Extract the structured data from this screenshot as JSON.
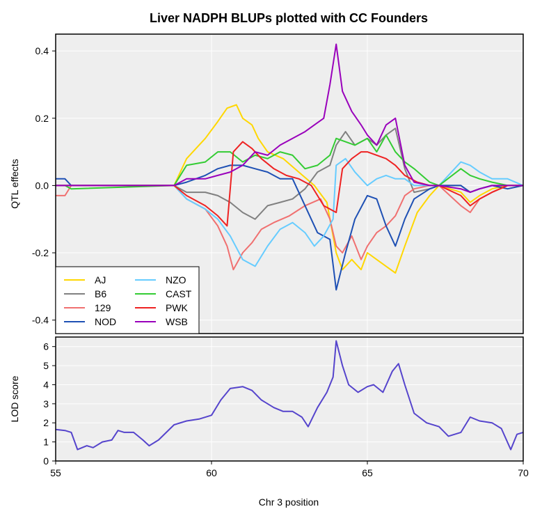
{
  "chart_data": {
    "type": "line",
    "title": "Liver NADPH BLUPs plotted with CC Founders",
    "xlabel": "Chr 3 position",
    "xlim": [
      55,
      70
    ],
    "xticks": [
      55,
      60,
      65,
      70
    ],
    "grid": true,
    "panels": [
      {
        "id": "qtl",
        "ylabel": "QTL effects",
        "ylim": [
          -0.44,
          0.45
        ],
        "yticks": [
          -0.4,
          -0.2,
          0.0,
          0.2,
          0.4
        ],
        "ytick_labels": [
          "-0.4",
          "-0.2",
          "0.0",
          "0.2",
          "0.4"
        ],
        "legend_position": "bottom-left",
        "series": [
          {
            "name": "AJ",
            "color": "#FFD700",
            "x": [
              55,
              55.3,
              55.5,
              58.8,
              59.2,
              59.8,
              60.2,
              60.5,
              60.8,
              61.0,
              61.3,
              61.5,
              61.8,
              62.3,
              62.8,
              63.3,
              63.7,
              64.0,
              64.2,
              64.5,
              64.8,
              65.0,
              65.3,
              65.6,
              65.9,
              66.2,
              66.6,
              67.0,
              67.3,
              68.0,
              68.3,
              68.6,
              69.0,
              69.5,
              70
            ],
            "y": [
              0.0,
              0.0,
              0.0,
              0.0,
              0.08,
              0.14,
              0.19,
              0.23,
              0.24,
              0.2,
              0.18,
              0.14,
              0.1,
              0.08,
              0.04,
              0.0,
              -0.05,
              -0.2,
              -0.25,
              -0.22,
              -0.25,
              -0.2,
              -0.22,
              -0.24,
              -0.26,
              -0.18,
              -0.08,
              -0.03,
              0.0,
              -0.02,
              -0.05,
              -0.03,
              -0.01,
              0.0,
              0.0
            ]
          },
          {
            "name": "B6",
            "color": "#808080",
            "x": [
              55,
              55.3,
              55.5,
              58.8,
              59.2,
              59.8,
              60.2,
              60.6,
              61.0,
              61.4,
              61.8,
              62.2,
              62.6,
              63.0,
              63.4,
              63.8,
              64.0,
              64.3,
              64.6,
              65.0,
              65.3,
              65.6,
              65.9,
              66.2,
              66.5,
              67.0,
              67.3,
              68.0,
              68.3,
              68.6,
              69.0,
              69.5,
              70
            ],
            "y": [
              0.0,
              0.0,
              0.0,
              0.0,
              -0.02,
              -0.02,
              -0.03,
              -0.05,
              -0.08,
              -0.1,
              -0.06,
              -0.05,
              -0.04,
              -0.01,
              0.04,
              0.06,
              0.12,
              0.16,
              0.12,
              0.14,
              0.12,
              0.15,
              0.17,
              0.05,
              -0.02,
              -0.01,
              0.0,
              0.0,
              -0.02,
              -0.01,
              0.0,
              0.0,
              0.0
            ]
          },
          {
            "name": "129",
            "color": "#F07070",
            "x": [
              55,
              55.3,
              55.5,
              58.8,
              59.2,
              59.8,
              60.2,
              60.5,
              60.7,
              61.0,
              61.3,
              61.6,
              62.0,
              62.5,
              63.0,
              63.5,
              63.8,
              64.0,
              64.2,
              64.5,
              64.8,
              65.0,
              65.3,
              65.6,
              65.9,
              66.2,
              66.5,
              67.0,
              67.3,
              68.0,
              68.3,
              68.6,
              69.0,
              69.5,
              70
            ],
            "y": [
              -0.03,
              -0.03,
              0.0,
              0.0,
              -0.04,
              -0.07,
              -0.12,
              -0.18,
              -0.25,
              -0.2,
              -0.17,
              -0.13,
              -0.11,
              -0.09,
              -0.06,
              -0.04,
              -0.1,
              -0.18,
              -0.2,
              -0.15,
              -0.22,
              -0.18,
              -0.14,
              -0.12,
              -0.09,
              -0.03,
              -0.01,
              0.0,
              0.0,
              -0.06,
              -0.08,
              -0.04,
              -0.02,
              0.0,
              0.0
            ]
          },
          {
            "name": "NOD",
            "color": "#1E50B4",
            "x": [
              55,
              55.3,
              55.5,
              58.8,
              59.2,
              59.8,
              60.2,
              60.6,
              61.0,
              61.4,
              61.8,
              62.2,
              62.6,
              63.0,
              63.4,
              63.8,
              64.0,
              64.3,
              64.6,
              65.0,
              65.3,
              65.6,
              65.9,
              66.2,
              66.5,
              67.0,
              67.3,
              68.0,
              68.3,
              68.6,
              69.0,
              69.5,
              70
            ],
            "y": [
              0.02,
              0.02,
              0.0,
              0.0,
              0.01,
              0.03,
              0.05,
              0.06,
              0.06,
              0.05,
              0.04,
              0.02,
              0.02,
              -0.06,
              -0.14,
              -0.16,
              -0.31,
              -0.2,
              -0.1,
              -0.03,
              -0.04,
              -0.12,
              -0.18,
              -0.1,
              -0.04,
              -0.01,
              0.0,
              0.0,
              -0.02,
              -0.01,
              0.0,
              -0.01,
              0.0
            ]
          },
          {
            "name": "NZO",
            "color": "#66CCFF",
            "x": [
              55,
              55.3,
              55.5,
              58.8,
              59.2,
              59.8,
              60.2,
              60.6,
              61.0,
              61.4,
              61.8,
              62.2,
              62.6,
              63.0,
              63.3,
              63.6,
              63.9,
              64.0,
              64.3,
              64.6,
              65.0,
              65.3,
              65.6,
              65.9,
              66.2,
              66.5,
              67.0,
              67.3,
              68.0,
              68.3,
              68.6,
              69.0,
              69.5,
              70
            ],
            "y": [
              0.0,
              0.0,
              0.0,
              0.0,
              -0.04,
              -0.07,
              -0.1,
              -0.15,
              -0.22,
              -0.24,
              -0.18,
              -0.13,
              -0.11,
              -0.14,
              -0.18,
              -0.15,
              -0.1,
              0.06,
              0.08,
              0.04,
              0.0,
              0.02,
              0.03,
              0.02,
              0.02,
              0.0,
              0.0,
              0.0,
              0.07,
              0.06,
              0.04,
              0.02,
              0.02,
              0.0
            ]
          },
          {
            "name": "CAST",
            "color": "#33CC33",
            "x": [
              55,
              55.3,
              55.5,
              58.8,
              59.2,
              59.8,
              60.2,
              60.6,
              61.0,
              61.4,
              61.8,
              62.2,
              62.6,
              63.0,
              63.4,
              63.8,
              64.0,
              64.3,
              64.6,
              65.0,
              65.3,
              65.6,
              65.9,
              66.2,
              66.5,
              67.0,
              67.3,
              68.0,
              68.3,
              68.6,
              69.0,
              69.5,
              70
            ],
            "y": [
              0.0,
              0.0,
              -0.01,
              0.0,
              0.06,
              0.07,
              0.1,
              0.1,
              0.07,
              0.09,
              0.08,
              0.1,
              0.09,
              0.05,
              0.06,
              0.09,
              0.14,
              0.13,
              0.12,
              0.14,
              0.1,
              0.15,
              0.1,
              0.07,
              0.05,
              0.01,
              0.0,
              0.05,
              0.03,
              0.02,
              0.01,
              0.0,
              0.0
            ]
          },
          {
            "name": "PWK",
            "color": "#EE2222",
            "x": [
              55,
              55.3,
              55.5,
              58.8,
              59.2,
              59.8,
              60.2,
              60.5,
              60.7,
              61.0,
              61.3,
              61.6,
              62.0,
              62.4,
              62.8,
              63.2,
              63.6,
              64.0,
              64.2,
              64.5,
              64.8,
              65.0,
              65.3,
              65.6,
              65.9,
              66.2,
              66.6,
              67.0,
              67.3,
              68.0,
              68.3,
              68.6,
              69.0,
              69.5,
              70
            ],
            "y": [
              0.0,
              0.0,
              0.0,
              0.0,
              -0.03,
              -0.06,
              -0.09,
              -0.12,
              0.1,
              0.13,
              0.11,
              0.08,
              0.05,
              0.03,
              0.02,
              0.0,
              -0.06,
              -0.08,
              0.05,
              0.08,
              0.1,
              0.1,
              0.09,
              0.08,
              0.06,
              0.03,
              0.01,
              0.0,
              0.0,
              -0.03,
              -0.06,
              -0.04,
              -0.02,
              0.0,
              0.0
            ]
          },
          {
            "name": "WSB",
            "color": "#9900BB",
            "x": [
              55,
              55.3,
              55.5,
              58.8,
              59.2,
              59.8,
              60.2,
              60.6,
              61.0,
              61.4,
              61.8,
              62.2,
              62.6,
              63.0,
              63.3,
              63.6,
              63.8,
              64.0,
              64.2,
              64.5,
              64.8,
              65.0,
              65.3,
              65.6,
              65.9,
              66.2,
              66.5,
              67.0,
              67.3,
              68.0,
              68.3,
              68.6,
              69.0,
              69.5,
              70
            ],
            "y": [
              0.0,
              0.0,
              0.0,
              0.0,
              0.02,
              0.02,
              0.03,
              0.04,
              0.06,
              0.1,
              0.09,
              0.12,
              0.14,
              0.16,
              0.18,
              0.2,
              0.3,
              0.42,
              0.28,
              0.22,
              0.18,
              0.15,
              0.12,
              0.18,
              0.2,
              0.06,
              0.01,
              0.0,
              0.0,
              -0.01,
              -0.02,
              -0.01,
              0.0,
              0.0,
              0.0
            ]
          }
        ],
        "legend": {
          "position": "bottom-left",
          "columns": 2,
          "entries": [
            "AJ",
            "B6",
            "129",
            "NOD",
            "NZO",
            "CAST",
            "PWK",
            "WSB"
          ]
        }
      },
      {
        "id": "lod",
        "ylabel": "LOD score",
        "ylim": [
          0,
          6.5
        ],
        "yticks": [
          0,
          1,
          2,
          3,
          4,
          5,
          6
        ],
        "ytick_labels": [
          "0",
          "1",
          "2",
          "3",
          "4",
          "5",
          "6"
        ],
        "series": [
          {
            "name": "LOD",
            "color": "#5544CC",
            "x": [
              55,
              55.3,
              55.5,
              55.7,
              56.0,
              56.2,
              56.5,
              56.8,
              57.0,
              57.2,
              57.5,
              57.8,
              58.0,
              58.3,
              58.8,
              59.2,
              59.6,
              60.0,
              60.3,
              60.6,
              61.0,
              61.3,
              61.6,
              62.0,
              62.3,
              62.6,
              62.9,
              63.1,
              63.4,
              63.7,
              63.9,
              64.0,
              64.2,
              64.4,
              64.7,
              65.0,
              65.2,
              65.5,
              65.8,
              66.0,
              66.2,
              66.5,
              66.9,
              67.3,
              67.6,
              68.0,
              68.3,
              68.6,
              69.0,
              69.3,
              69.6,
              69.8,
              70
            ],
            "y": [
              1.65,
              1.6,
              1.5,
              0.6,
              0.8,
              0.7,
              1.0,
              1.1,
              1.6,
              1.5,
              1.5,
              1.1,
              0.8,
              1.1,
              1.9,
              2.1,
              2.2,
              2.4,
              3.2,
              3.8,
              3.9,
              3.7,
              3.2,
              2.8,
              2.6,
              2.6,
              2.3,
              1.8,
              2.8,
              3.6,
              4.4,
              6.3,
              5.0,
              4.0,
              3.6,
              3.9,
              4.0,
              3.6,
              4.7,
              5.1,
              4.0,
              2.5,
              2.0,
              1.8,
              1.3,
              1.5,
              2.3,
              2.1,
              2.0,
              1.7,
              0.6,
              1.4,
              1.5
            ]
          }
        ]
      }
    ]
  }
}
